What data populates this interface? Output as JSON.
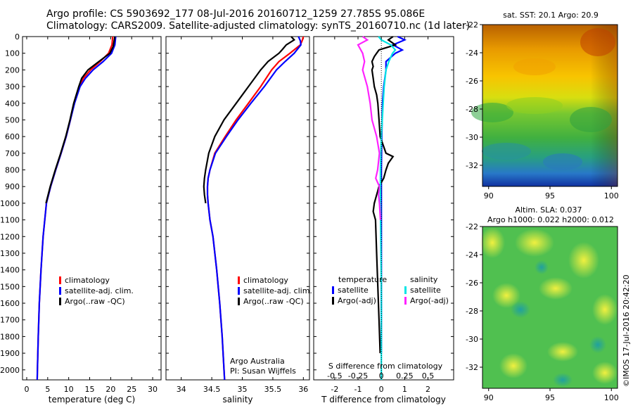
{
  "header": {
    "line1": "Argo profile: CS 5903692_177 08-Jul-2016 20160712_1259 27.785S 95.086E",
    "line2": "Climatology: CARS2009. Satellite-adjusted climatology: synTS_20160710.nc (1d later)"
  },
  "stamp": "©IMOS 17-Jul-2016 20:42:20",
  "colors": {
    "climatology": "#ff0000",
    "satellite": "#0000ff",
    "argo": "#000000",
    "satellite_s": "#00e5e5",
    "argo_s": "#ff22ff"
  },
  "chart_data": [
    {
      "type": "line",
      "panel": "temperature",
      "xlabel": "temperature (deg C)",
      "ylabel": "",
      "xlim": [
        -1,
        32
      ],
      "ylim": [
        2060,
        0
      ],
      "xticks": [
        0,
        5,
        10,
        15,
        20,
        25,
        30
      ],
      "yticks": [
        0,
        100,
        200,
        300,
        400,
        500,
        600,
        700,
        800,
        900,
        1000,
        1100,
        1200,
        1300,
        1400,
        1500,
        1600,
        1700,
        1800,
        1900,
        2000
      ],
      "legend": [
        "climatology",
        "satellite-adj. clim.",
        "Argo(..raw -QC)"
      ],
      "series": [
        {
          "name": "climatology",
          "color": "#ff0000",
          "depth": [
            0,
            50,
            100,
            150,
            200,
            250,
            300,
            400,
            500,
            600,
            700,
            800,
            900,
            1000,
            1200,
            1400,
            1600,
            1800,
            2000,
            2060
          ],
          "values": [
            20.5,
            20.3,
            19.5,
            17.5,
            15.2,
            13.5,
            12.5,
            11.3,
            10.4,
            9.4,
            8.2,
            6.9,
            5.7,
            4.7,
            3.9,
            3.4,
            3.0,
            2.75,
            2.55,
            2.5
          ]
        },
        {
          "name": "satellite-adj. clim.",
          "color": "#0000ff",
          "depth": [
            0,
            50,
            100,
            150,
            200,
            250,
            300,
            400,
            500,
            600,
            700,
            800,
            900,
            1000,
            1200,
            1400,
            1600,
            1800,
            2000,
            2060
          ],
          "values": [
            21.2,
            21.0,
            20.2,
            18.2,
            15.8,
            14.0,
            12.7,
            11.4,
            10.4,
            9.4,
            8.2,
            6.9,
            5.7,
            4.7,
            3.9,
            3.4,
            3.0,
            2.75,
            2.55,
            2.5
          ]
        },
        {
          "name": "Argo(..raw -QC)",
          "color": "#000000",
          "depth": [
            0,
            30,
            60,
            100,
            150,
            200,
            250,
            300,
            400,
            500,
            600,
            700,
            800,
            900,
            1000
          ],
          "values": [
            21.0,
            20.8,
            20.6,
            19.8,
            17.2,
            14.6,
            13.1,
            12.4,
            11.2,
            10.3,
            9.3,
            8.1,
            6.8,
            5.6,
            4.6
          ]
        }
      ]
    },
    {
      "type": "line",
      "panel": "salinity",
      "xlabel": "salinity",
      "ylabel": "",
      "xlim": [
        33.75,
        36.1
      ],
      "ylim": [
        2060,
        0
      ],
      "xticks": [
        34,
        34.5,
        35,
        35.5,
        36
      ],
      "legend": [
        "climatology",
        "satellite-adj. clim.",
        "Argo(..raw -QC)"
      ],
      "annotation": [
        "Argo Australia",
        "PI: Susan Wijffels"
      ],
      "series": [
        {
          "name": "climatology",
          "color": "#ff0000",
          "depth": [
            0,
            25,
            50,
            100,
            150,
            200,
            300,
            400,
            500,
            600,
            700,
            800,
            850,
            900,
            950,
            1000,
            1100,
            1200,
            1400,
            1600,
            1800,
            2000,
            2060
          ],
          "values": [
            36.0,
            35.98,
            35.95,
            35.78,
            35.6,
            35.48,
            35.3,
            35.1,
            34.9,
            34.72,
            34.55,
            34.47,
            34.44,
            34.43,
            34.43,
            34.44,
            34.47,
            34.52,
            34.58,
            34.63,
            34.67,
            34.7,
            34.71
          ]
        },
        {
          "name": "satellite-adj. clim.",
          "color": "#0000ff",
          "depth": [
            0,
            25,
            50,
            100,
            150,
            200,
            300,
            400,
            500,
            600,
            700,
            800,
            850,
            900,
            950,
            1000,
            1100,
            1200,
            1400,
            1600,
            1800,
            2000,
            2060
          ],
          "values": [
            35.92,
            35.95,
            35.96,
            35.85,
            35.7,
            35.56,
            35.36,
            35.14,
            34.93,
            34.74,
            34.56,
            34.47,
            34.44,
            34.43,
            34.43,
            34.44,
            34.47,
            34.52,
            34.58,
            34.63,
            34.67,
            34.7,
            34.71
          ]
        },
        {
          "name": "Argo(..raw -QC)",
          "color": "#000000",
          "depth": [
            0,
            20,
            50,
            80,
            100,
            150,
            200,
            300,
            400,
            500,
            600,
            700,
            800,
            850,
            900,
            950,
            1000
          ],
          "values": [
            35.8,
            35.85,
            35.72,
            35.65,
            35.6,
            35.42,
            35.3,
            35.1,
            34.9,
            34.7,
            34.55,
            34.45,
            34.4,
            34.38,
            34.37,
            34.38,
            34.4
          ]
        }
      ]
    },
    {
      "type": "line",
      "panel": "difference",
      "xlabel": "T difference from climatology",
      "xlabel_top": "S difference from climatology",
      "ylabel": "",
      "xlim": [
        -2.9,
        3.1
      ],
      "ylim": [
        2060,
        0
      ],
      "xticks": [
        -2,
        -1,
        0,
        1,
        2
      ],
      "xticks_s": [
        "-0.5",
        "-0.25",
        "0",
        "0.25",
        "0.5"
      ],
      "legend_temperature": {
        "title": "temperature",
        "items": [
          "satellite",
          "Argo(-adj)"
        ]
      },
      "legend_salinity": {
        "title": "salinity",
        "items": [
          "satellite",
          "Argo(-adj)"
        ]
      },
      "series": [
        {
          "name": "temperature satellite",
          "color": "#0000ff",
          "depth": [
            0,
            20,
            50,
            80,
            100,
            150,
            200,
            250,
            300,
            400,
            600,
            800,
            1000,
            1500,
            1900
          ],
          "values": [
            0.7,
            1.0,
            0.5,
            0.9,
            0.6,
            0.2,
            0.2,
            0.15,
            0.1,
            0.05,
            0.02,
            0.0,
            0.0,
            0.0,
            0.0
          ]
        },
        {
          "name": "temperature Argo(-adj)",
          "color": "#000000",
          "depth": [
            0,
            20,
            50,
            80,
            100,
            120,
            150,
            180,
            200,
            250,
            300,
            350,
            400,
            500,
            600,
            700,
            720,
            760,
            800,
            850,
            900,
            950,
            1000,
            1050,
            1100,
            1300,
            1500,
            1700,
            1900
          ],
          "values": [
            0.5,
            0.3,
            0.6,
            -0.1,
            -0.2,
            -0.3,
            -0.4,
            -0.35,
            -0.4,
            -0.35,
            -0.3,
            -0.2,
            -0.15,
            -0.1,
            -0.05,
            0.2,
            0.5,
            0.3,
            0.2,
            0.1,
            -0.1,
            -0.2,
            -0.3,
            -0.35,
            -0.25,
            -0.2,
            -0.15,
            -0.1,
            -0.05
          ]
        },
        {
          "name": "salinity satellite",
          "color": "#00e5e5",
          "depth": [
            0,
            20,
            50,
            80,
            100,
            150,
            200,
            300,
            400,
            500,
            600,
            800,
            1000,
            1500,
            2000,
            2060
          ],
          "values": [
            -0.03,
            0.0,
            0.1,
            0.15,
            0.12,
            0.08,
            0.05,
            0.03,
            0.02,
            0.01,
            0.0,
            -0.01,
            -0.01,
            0.0,
            0.0,
            0.0
          ]
        },
        {
          "name": "salinity Argo(-adj)",
          "color": "#ff22ff",
          "depth": [
            0,
            20,
            50,
            100,
            150,
            200,
            300,
            400,
            500,
            600,
            700,
            800,
            850,
            900,
            950,
            1000,
            1100
          ],
          "values": [
            -0.2,
            -0.15,
            -0.25,
            -0.2,
            -0.18,
            -0.2,
            -0.15,
            -0.12,
            -0.1,
            -0.05,
            -0.02,
            -0.04,
            -0.06,
            -0.02,
            -0.03,
            -0.02,
            -0.01
          ]
        }
      ]
    },
    {
      "type": "heatmap",
      "panel": "sst-map",
      "title": "sat. SST: 20.1  Argo: 20.9",
      "xlim": [
        89.5,
        100.5
      ],
      "ylim": [
        -33.5,
        -22
      ],
      "xticks": [
        90,
        95,
        100
      ],
      "yticks": [
        -22,
        -24,
        -26,
        -28,
        -30,
        -32
      ],
      "colormap": "jet"
    },
    {
      "type": "heatmap",
      "panel": "sla-map",
      "title": [
        "Altim. SLA: 0.037",
        "Argo h1000: 0.022 h2000: 0.012"
      ],
      "xlim": [
        89.5,
        100.5
      ],
      "ylim": [
        -33.5,
        -22
      ],
      "xticks": [
        90,
        95,
        100
      ],
      "yticks": [
        -22,
        -24,
        -26,
        -28,
        -30,
        -32
      ],
      "colormap": "jet"
    }
  ]
}
